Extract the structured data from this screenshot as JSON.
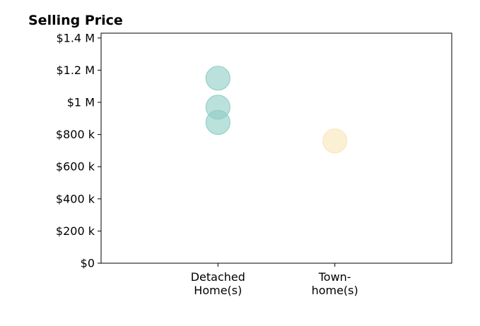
{
  "chart_data": {
    "type": "scatter",
    "title": "Selling Price",
    "xlabel": "",
    "ylabel": "",
    "ylim": [
      0,
      1430000
    ],
    "y_ticks": [
      {
        "value": 0,
        "label": "$0"
      },
      {
        "value": 200000,
        "label": "$200 k"
      },
      {
        "value": 400000,
        "label": "$400 k"
      },
      {
        "value": 600000,
        "label": "$600 k"
      },
      {
        "value": 800000,
        "label": "$800 k"
      },
      {
        "value": 1000000,
        "label": "$1 M"
      },
      {
        "value": 1200000,
        "label": "$1.2 M"
      },
      {
        "value": 1400000,
        "label": "$1.4 M"
      }
    ],
    "categories": [
      {
        "label_lines": [
          "Detached",
          "Home(s)"
        ]
      },
      {
        "label_lines": [
          "Town-",
          "home(s)"
        ]
      }
    ],
    "x_range": [
      -1,
      2
    ],
    "series": [
      {
        "color": "#8ecdc4",
        "points": [
          {
            "category": 0,
            "value": 1150000
          },
          {
            "category": 0,
            "value": 970000
          },
          {
            "category": 0,
            "value": 875000
          }
        ]
      },
      {
        "color": "#f8e6b8",
        "points": [
          {
            "category": 1,
            "value": 760000
          }
        ]
      }
    ],
    "grid": false,
    "legend": "none"
  }
}
